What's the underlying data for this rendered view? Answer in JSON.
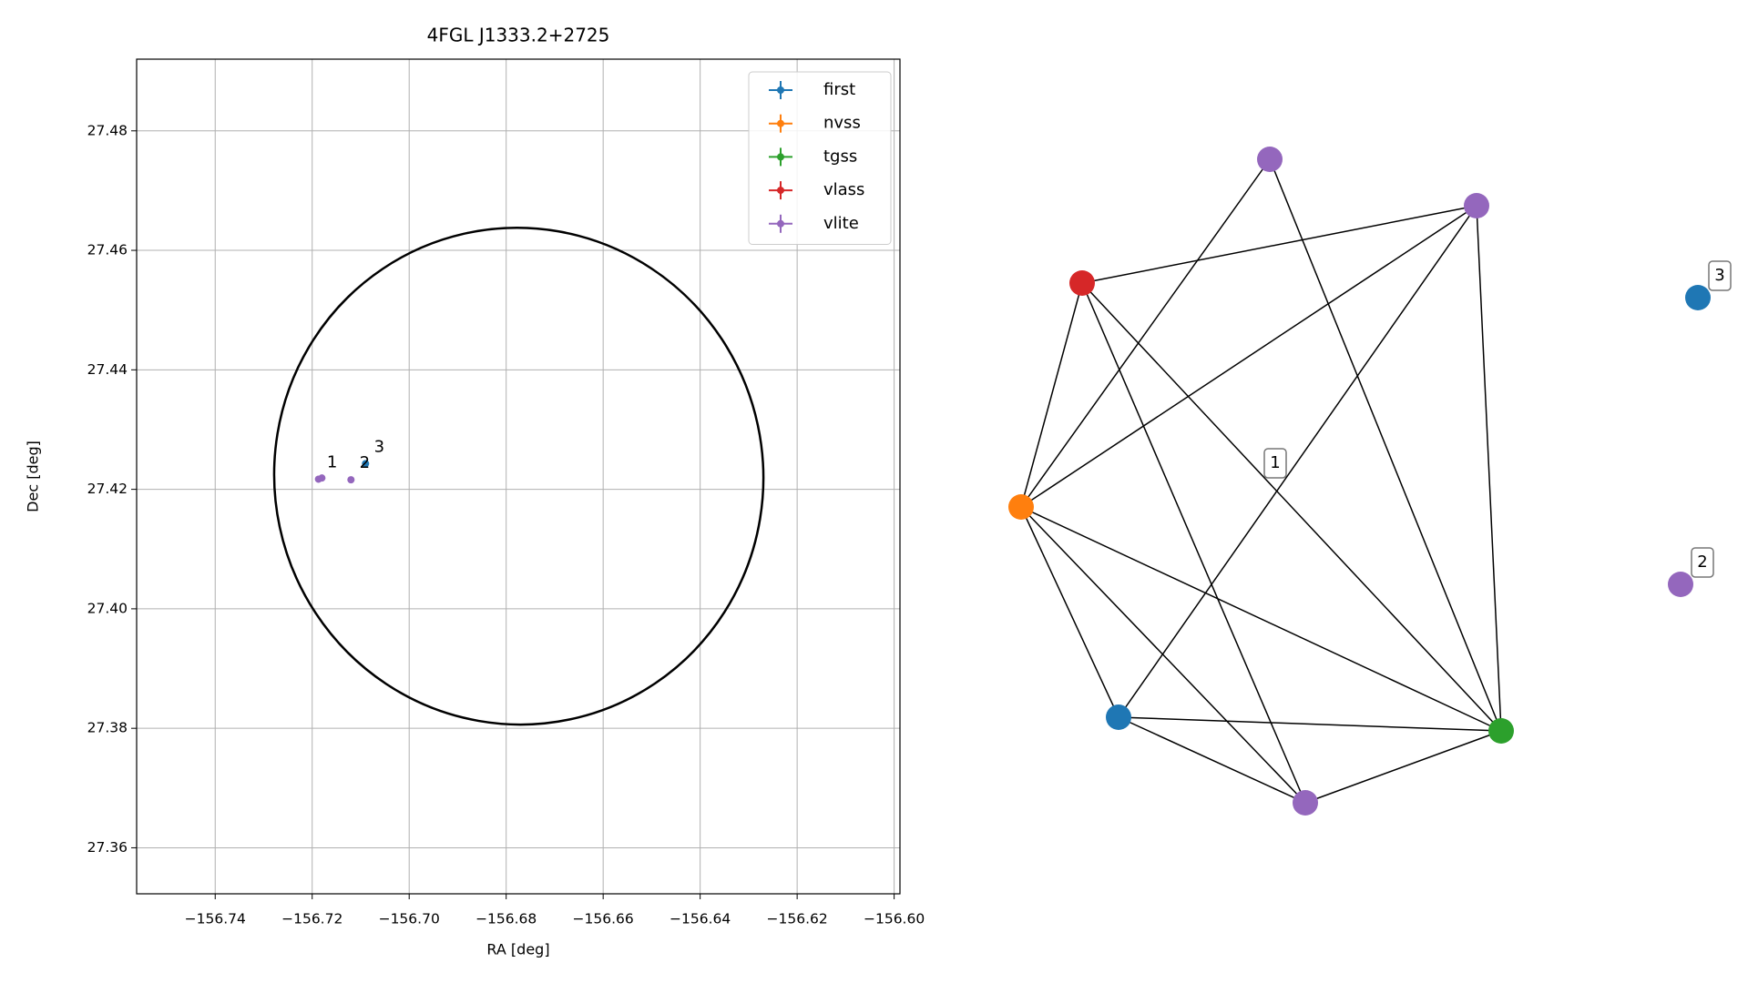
{
  "chart_data": [
    {
      "type": "scatter",
      "title": "4FGL J1333.2+2725",
      "xlabel": "RA [deg]",
      "ylabel": "Dec [deg]",
      "xlim": [
        -156.7562,
        -156.5988
      ],
      "ylim": [
        27.3523,
        27.492
      ],
      "xticks": [
        {
          "value": -156.74,
          "label": "−156.74"
        },
        {
          "value": -156.72,
          "label": "−156.72"
        },
        {
          "value": -156.7,
          "label": "−156.70"
        },
        {
          "value": -156.68,
          "label": "−156.68"
        },
        {
          "value": -156.66,
          "label": "−156.66"
        },
        {
          "value": -156.64,
          "label": "−156.64"
        },
        {
          "value": -156.62,
          "label": "−156.62"
        },
        {
          "value": -156.6,
          "label": "−156.60"
        }
      ],
      "yticks": [
        27.36,
        27.38,
        {
          "value": 27.4,
          "label": "27.40"
        },
        27.42,
        27.44,
        27.46,
        27.48
      ],
      "grid": true,
      "legend": "upper right",
      "ellipse": {
        "center": [
          -156.6774,
          27.4222
        ],
        "width": 0.1008,
        "height": 0.0832,
        "angle": -12,
        "color": "#000000"
      },
      "series": [
        {
          "name": "first",
          "color": "#1f77b4",
          "x": [
            -156.709
          ],
          "y": [
            27.4243
          ],
          "labels": [
            "3"
          ]
        },
        {
          "name": "nvss",
          "color": "#ff7f0e",
          "x": [],
          "y": [],
          "labels": []
        },
        {
          "name": "tgss",
          "color": "#2ca02c",
          "x": [],
          "y": [],
          "labels": []
        },
        {
          "name": "vlass",
          "color": "#d62728",
          "x": [],
          "y": [],
          "labels": []
        },
        {
          "name": "vlite",
          "color": "#9467bd",
          "x": [
            -156.7187,
            -156.718,
            -156.712
          ],
          "y": [
            27.4217,
            27.4219,
            27.4216
          ],
          "labels": [
            "1",
            null,
            "2"
          ]
        }
      ]
    },
    {
      "type": "network",
      "nodes": [
        {
          "color": "#9467bd"
        },
        {
          "color": "#9467bd"
        },
        {
          "color": "#d62728"
        },
        {
          "color": "#ff7f0e"
        },
        {
          "color": "#1f77b4"
        },
        {
          "color": "#9467bd"
        },
        {
          "color": "#2ca02c"
        },
        {
          "color": "#1f77b4",
          "label": "3"
        },
        {
          "color": "#9467bd",
          "label": "2"
        }
      ],
      "edges": [
        [
          2,
          1
        ],
        [
          2,
          3
        ],
        [
          2,
          5
        ],
        [
          2,
          6
        ],
        [
          0,
          3
        ],
        [
          0,
          6
        ],
        [
          1,
          3
        ],
        [
          1,
          4
        ],
        [
          1,
          6
        ],
        [
          3,
          4
        ],
        [
          3,
          5
        ],
        [
          3,
          6
        ],
        [
          4,
          5
        ],
        [
          4,
          6
        ],
        [
          5,
          6
        ]
      ],
      "annotations": [
        "1"
      ]
    }
  ]
}
